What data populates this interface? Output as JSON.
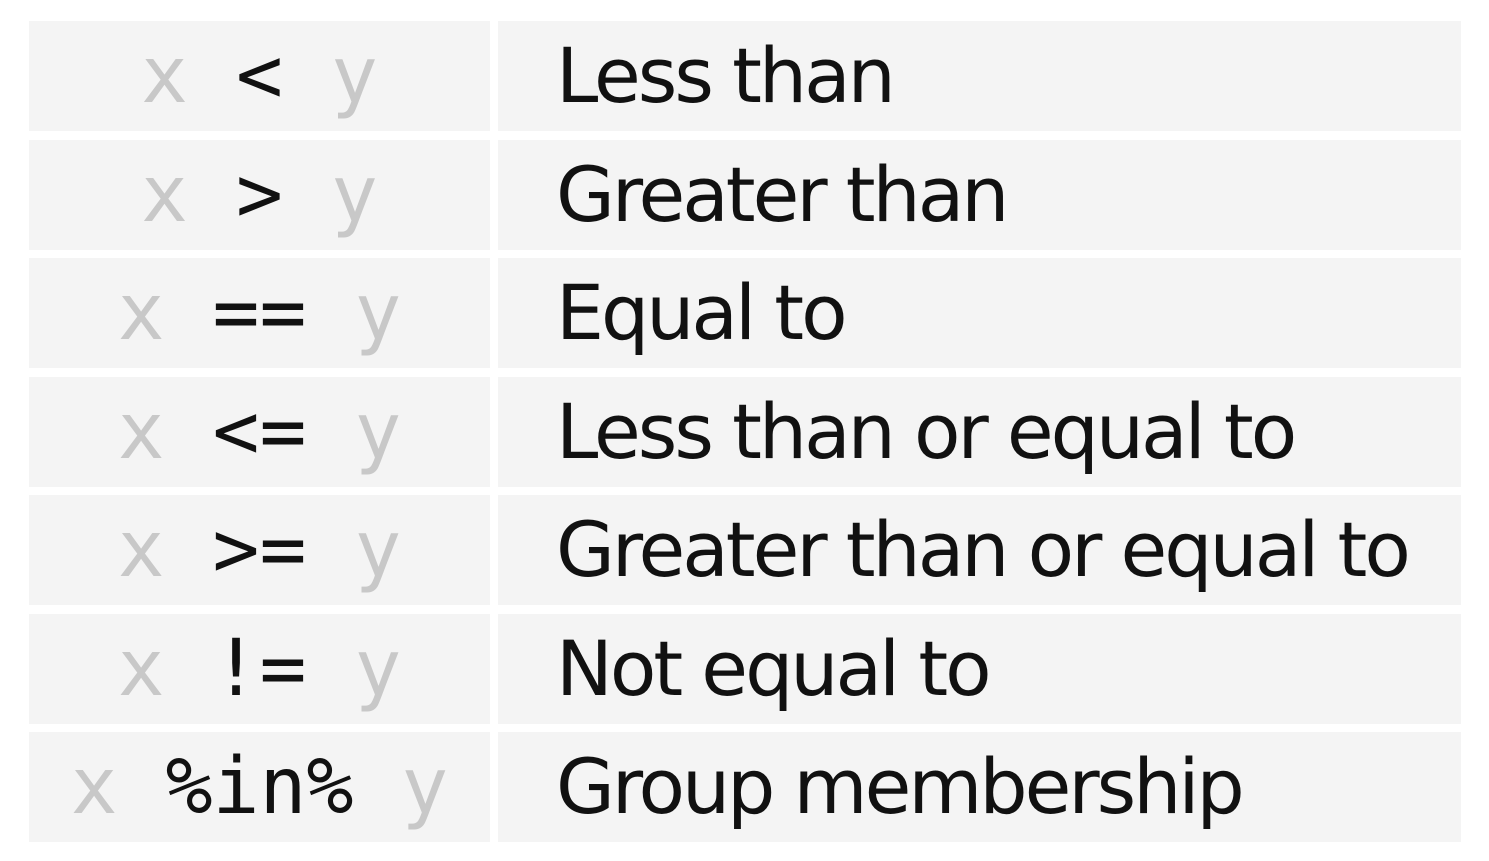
{
  "operators": [
    {
      "left": "x",
      "op": "<",
      "right": "y",
      "description": "Less than"
    },
    {
      "left": "x",
      "op": ">",
      "right": "y",
      "description": "Greater than"
    },
    {
      "left": "x",
      "op": "==",
      "right": "y",
      "description": "Equal to"
    },
    {
      "left": "x",
      "op": "<=",
      "right": "y",
      "description": "Less than or equal to"
    },
    {
      "left": "x",
      "op": ">=",
      "right": "y",
      "description": "Greater than or equal to"
    },
    {
      "left": "x",
      "op": "!=",
      "right": "y",
      "description": "Not equal to"
    },
    {
      "left": "x",
      "op": "%in%",
      "right": "y",
      "description": "Group membership"
    }
  ]
}
